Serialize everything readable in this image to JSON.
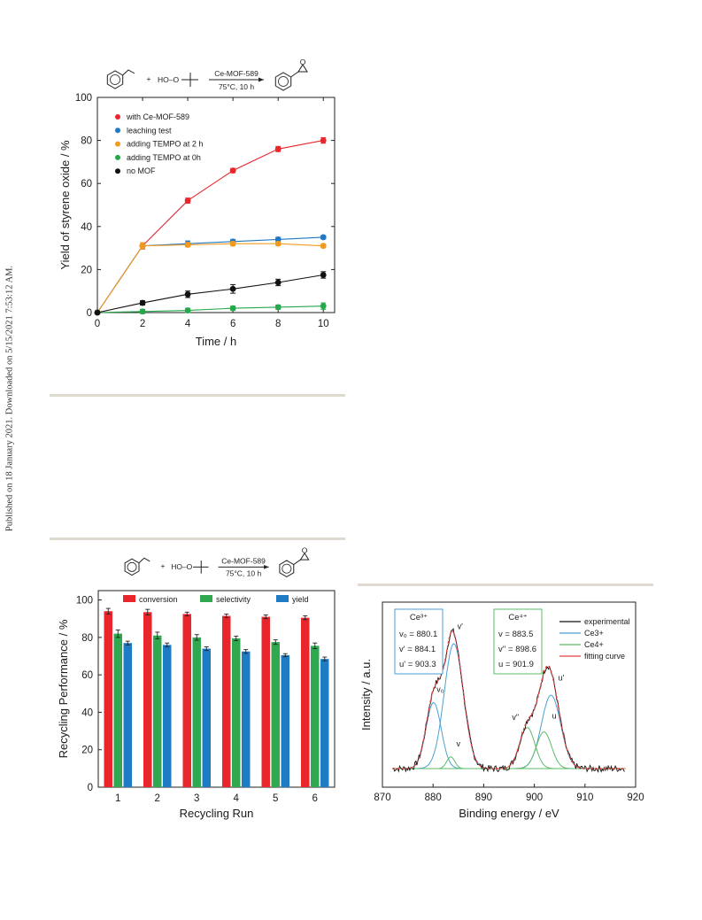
{
  "side_note": "Published on 18 January 2021. Downloaded on 5/15/2021 7:53:12 AM.",
  "schemes": {
    "oxidant": "HO–O",
    "plus": "+",
    "catalyst": "Ce-MOF-589",
    "conditions": "75°C, 10 h"
  },
  "colors": {
    "red": "#e8262b",
    "blue": "#1f78c1",
    "orange": "#f39a1e",
    "green": "#24a84a",
    "black": "#111111",
    "xps_blue": "#4a9fd4",
    "xps_green": "#5dbb6a",
    "xps_red": "#e04040",
    "bar_red": "#e8262b",
    "bar_green": "#2fa84f",
    "bar_blue": "#1e7cc4"
  },
  "chart_data": [
    {
      "type": "line",
      "xlabel": "Time / h",
      "ylabel": "Yield of styrene oxide / %",
      "xlim": [
        0,
        10.5
      ],
      "ylim": [
        0,
        100
      ],
      "xticks": [
        0,
        2,
        4,
        6,
        8,
        10
      ],
      "yticks": [
        0,
        20,
        40,
        60,
        80,
        100
      ],
      "legend_position": "top-left",
      "series": [
        {
          "name": "with Ce-MOF-589",
          "color": "#e8262b",
          "x": [
            0,
            2,
            4,
            6,
            8,
            10
          ],
          "y": [
            0,
            31,
            52,
            66,
            76,
            80
          ],
          "err": [
            0,
            1.5,
            1.2,
            1,
            1.2,
            1.3
          ]
        },
        {
          "name": "leaching test",
          "color": "#1f78c1",
          "x": [
            0,
            2,
            4,
            6,
            8,
            10
          ],
          "y": [
            0,
            31,
            32,
            33,
            34,
            35
          ],
          "err": [
            0,
            1.5,
            1.3,
            1,
            1,
            0.8
          ]
        },
        {
          "name": "adding TEMPO at 2 h",
          "color": "#f39a1e",
          "x": [
            0,
            2,
            4,
            6,
            8,
            10
          ],
          "y": [
            0,
            31,
            31.5,
            32,
            32,
            31
          ],
          "err": [
            0,
            1.5,
            1,
            1,
            0.8,
            0.8
          ]
        },
        {
          "name": "adding TEMPO at 0h",
          "color": "#24a84a",
          "x": [
            0,
            2,
            4,
            6,
            8,
            10
          ],
          "y": [
            0,
            0.5,
            1,
            2,
            2.5,
            3
          ],
          "err": [
            0,
            1,
            1,
            1,
            1,
            1.5
          ]
        },
        {
          "name": "no MOF",
          "color": "#111111",
          "x": [
            0,
            2,
            4,
            6,
            8,
            10
          ],
          "y": [
            0,
            4.5,
            8.5,
            11,
            14,
            17.5
          ],
          "err": [
            0,
            1,
            1.5,
            2,
            1.5,
            1.5
          ]
        }
      ]
    },
    {
      "type": "bar",
      "xlabel": "Recycling Run",
      "ylabel": "Recycling Performance / %",
      "ylim": [
        0,
        105
      ],
      "yticks": [
        0,
        20,
        40,
        60,
        80,
        100
      ],
      "categories": [
        "1",
        "2",
        "3",
        "4",
        "5",
        "6"
      ],
      "legend_position": "top",
      "series": [
        {
          "name": "conversion",
          "color": "#e8262b",
          "values": [
            94,
            93.5,
            92.5,
            91.5,
            91,
            90.5
          ],
          "err": [
            1.5,
            1.5,
            1,
            1,
            1,
            1
          ]
        },
        {
          "name": "selectivity",
          "color": "#2fa84f",
          "values": [
            82,
            81,
            80,
            79.5,
            77.5,
            75.5
          ],
          "err": [
            2,
            1.8,
            1.5,
            1.2,
            1.2,
            1.5
          ]
        },
        {
          "name": "yield",
          "color": "#1e7cc4",
          "values": [
            77,
            76,
            74,
            72.5,
            70.5,
            68.5
          ],
          "err": [
            1,
            1,
            1,
            1,
            0.8,
            1
          ]
        }
      ]
    },
    {
      "type": "line",
      "xlabel": "Binding energy / eV",
      "ylabel": "Intensity / a.u.",
      "xlim": [
        870,
        920
      ],
      "xticks": [
        870,
        880,
        890,
        900,
        910,
        920
      ],
      "legend_position": "top-right",
      "series": [
        {
          "name": "experimental",
          "color": "#111111"
        },
        {
          "name": "Ce3+",
          "color": "#4a9fd4"
        },
        {
          "name": "Ce4+",
          "color": "#5dbb6a"
        },
        {
          "name": "fitting curve",
          "color": "#e04040"
        }
      ],
      "peaks": [
        {
          "label": "v0",
          "center": 880.1,
          "amp": 0.45,
          "width": 1.5,
          "group": "Ce3+"
        },
        {
          "label": "v'",
          "center": 884.1,
          "amp": 0.85,
          "width": 1.9,
          "group": "Ce3+"
        },
        {
          "label": "u'",
          "center": 903.3,
          "amp": 0.5,
          "width": 1.9,
          "group": "Ce3+"
        },
        {
          "label": "v",
          "center": 883.5,
          "amp": 0.08,
          "width": 0.8,
          "group": "Ce4+"
        },
        {
          "label": "v''",
          "center": 898.6,
          "amp": 0.28,
          "width": 1.5,
          "group": "Ce4+"
        },
        {
          "label": "u",
          "center": 901.9,
          "amp": 0.25,
          "width": 1.5,
          "group": "Ce4+"
        }
      ],
      "boxes": [
        {
          "title": "Ce³⁺",
          "lines": [
            "v₀ = 880.1",
            "v' = 884.1",
            "u' = 903.3"
          ]
        },
        {
          "title": "Ce⁴⁺",
          "lines": [
            "v = 883.5",
            "v'' = 898.6",
            "u = 901.9"
          ]
        }
      ],
      "peak_labels": [
        "v'",
        "v₀",
        "v",
        "v''",
        "u",
        "u'"
      ]
    }
  ]
}
